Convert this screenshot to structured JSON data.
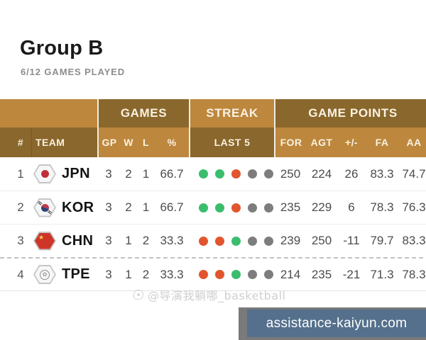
{
  "header": {
    "title": "Group B",
    "subtitle": "6/12 GAMES PLAYED"
  },
  "table": {
    "sections": {
      "games": "GAMES",
      "streak": "STREAK",
      "game_points": "GAME POINTS"
    },
    "columns": {
      "rank": "#",
      "team": "TEAM",
      "gp": "GP",
      "w": "W",
      "l": "L",
      "pct": "%",
      "last5": "LAST 5",
      "for": "FOR",
      "agt": "AGT",
      "plus_minus": "+/-",
      "fa": "FA",
      "aa": "AA"
    },
    "rows": [
      {
        "rank": "1",
        "team": "JPN",
        "gp": "3",
        "w": "2",
        "l": "1",
        "pct": "66.7",
        "last5": [
          "win",
          "win",
          "loss",
          "none",
          "none"
        ],
        "for": "250",
        "agt": "224",
        "plus_minus": "26",
        "fa": "83.3",
        "aa": "74.7"
      },
      {
        "rank": "2",
        "team": "KOR",
        "gp": "3",
        "w": "2",
        "l": "1",
        "pct": "66.7",
        "last5": [
          "win",
          "win",
          "loss",
          "none",
          "none"
        ],
        "for": "235",
        "agt": "229",
        "plus_minus": "6",
        "fa": "78.3",
        "aa": "76.3"
      },
      {
        "rank": "3",
        "team": "CHN",
        "gp": "3",
        "w": "1",
        "l": "2",
        "pct": "33.3",
        "last5": [
          "loss",
          "loss",
          "win",
          "none",
          "none"
        ],
        "for": "239",
        "agt": "250",
        "plus_minus": "-11",
        "fa": "79.7",
        "aa": "83.3"
      },
      {
        "rank": "4",
        "team": "TPE",
        "gp": "3",
        "w": "1",
        "l": "2",
        "pct": "33.3",
        "last5": [
          "loss",
          "loss",
          "win",
          "none",
          "none"
        ],
        "for": "214",
        "agt": "235",
        "plus_minus": "-21",
        "fa": "71.3",
        "aa": "78.3"
      }
    ]
  },
  "streak_colors": {
    "win": "#3bbd6e",
    "loss": "#e2552e",
    "none": "#7d7d7d"
  },
  "theme": {
    "header_light": "#bd873d",
    "header_dark": "#8a672c",
    "header_text": "#f9f2e2"
  },
  "watermark": {
    "text": "@导演我躺哪_basketball"
  },
  "overlay": {
    "url_text": "assistance-kaiyun.com",
    "background": "#54708c"
  }
}
